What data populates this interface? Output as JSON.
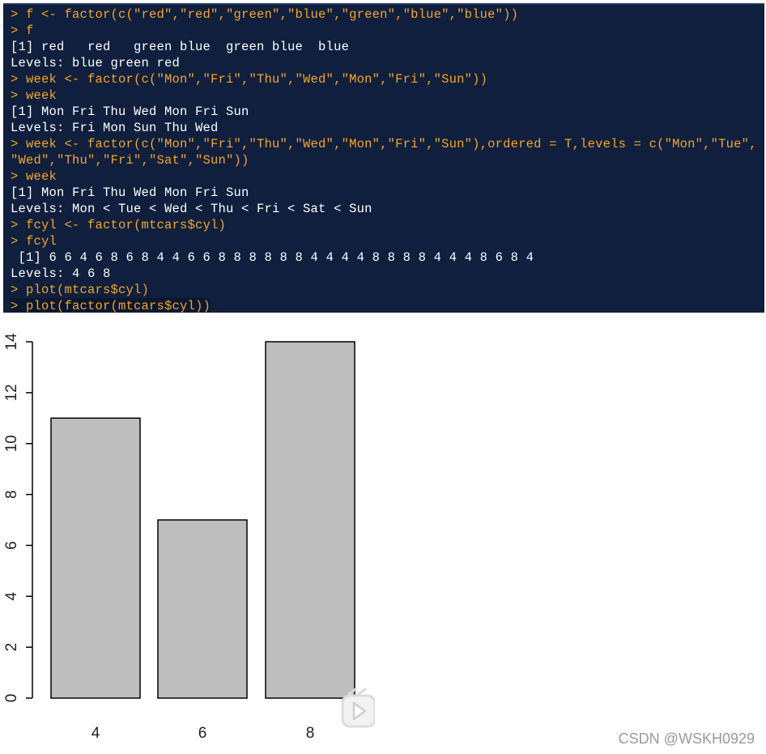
{
  "console": {
    "lines": [
      {
        "kind": "cmd",
        "text": "> f <- factor(c(\"red\",\"red\",\"green\",\"blue\",\"green\",\"blue\",\"blue\"))"
      },
      {
        "kind": "cmd",
        "text": "> f"
      },
      {
        "kind": "out",
        "text": "[1] red   red   green blue  green blue  blue"
      },
      {
        "kind": "out",
        "text": "Levels: blue green red"
      },
      {
        "kind": "cmd",
        "text": "> week <- factor(c(\"Mon\",\"Fri\",\"Thu\",\"Wed\",\"Mon\",\"Fri\",\"Sun\"))"
      },
      {
        "kind": "cmd",
        "text": "> week"
      },
      {
        "kind": "out",
        "text": "[1] Mon Fri Thu Wed Mon Fri Sun"
      },
      {
        "kind": "out",
        "text": "Levels: Fri Mon Sun Thu Wed"
      },
      {
        "kind": "cmd",
        "text": "> week <- factor(c(\"Mon\",\"Fri\",\"Thu\",\"Wed\",\"Mon\",\"Fri\",\"Sun\"),ordered = T,levels = c(\"Mon\",\"Tue\","
      },
      {
        "kind": "cmd",
        "text": "\"Wed\",\"Thu\",\"Fri\",\"Sat\",\"Sun\"))"
      },
      {
        "kind": "cmd",
        "text": "> week"
      },
      {
        "kind": "out",
        "text": "[1] Mon Fri Thu Wed Mon Fri Sun"
      },
      {
        "kind": "out",
        "text": "Levels: Mon < Tue < Wed < Thu < Fri < Sat < Sun"
      },
      {
        "kind": "cmd",
        "text": "> fcyl <- factor(mtcars$cyl)"
      },
      {
        "kind": "cmd",
        "text": "> fcyl"
      },
      {
        "kind": "out",
        "text": " [1] 6 6 4 6 8 6 8 4 4 6 6 8 8 8 8 8 8 4 4 4 4 8 8 8 8 4 4 4 8 6 8 4"
      },
      {
        "kind": "out",
        "text": "Levels: 4 6 8"
      },
      {
        "kind": "cmd",
        "text": "> plot(mtcars$cyl)"
      },
      {
        "kind": "cmd",
        "text": "> plot(factor(mtcars$cyl))"
      }
    ]
  },
  "colors": {
    "console_bg": "#0f1f3d",
    "command_text": "#f5a623",
    "output_text": "#ffffff",
    "bar_fill": "#bebebe",
    "bar_stroke": "#000000"
  },
  "chart_data": {
    "type": "bar",
    "categories": [
      "4",
      "6",
      "8"
    ],
    "values": [
      11,
      7,
      14
    ],
    "ylim": [
      0,
      14
    ],
    "yticks": [
      "0",
      "2",
      "4",
      "6",
      "8",
      "10",
      "12",
      "14"
    ],
    "title": "",
    "xlabel": "",
    "ylabel": "",
    "grid": false
  },
  "watermark": "CSDN @WSKH0929",
  "overlay_icon": "play-icon"
}
